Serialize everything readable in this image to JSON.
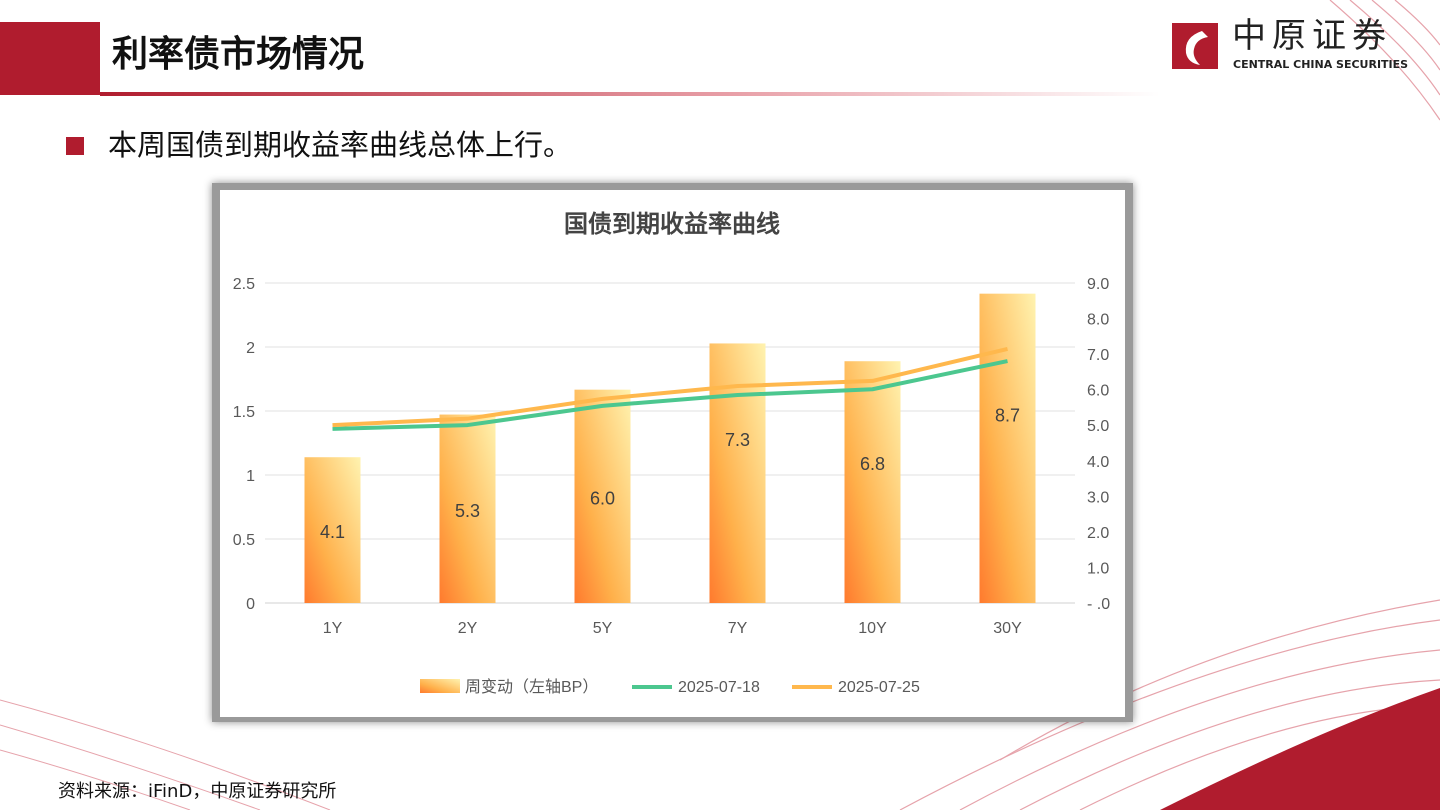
{
  "header": {
    "title": "利率债市场情况"
  },
  "logo": {
    "cn": "中原证券",
    "en": "CENTRAL CHINA SECURITIES"
  },
  "bullet": "本周国债到期收益率曲线总体上行。",
  "source": "资料来源：iFinD，中原证券研究所",
  "colors": {
    "brand": "#b01c2e",
    "green": "#4cc78f",
    "orange": "#ffb84d"
  },
  "chart_data": {
    "type": "bar+line",
    "title": "国债到期收益率曲线",
    "categories": [
      "1Y",
      "2Y",
      "5Y",
      "7Y",
      "10Y",
      "30Y"
    ],
    "left_axis": {
      "ylim": [
        0,
        2.5
      ],
      "ticks": [
        "0",
        "0.5",
        "1",
        "1.5",
        "2",
        "2.5"
      ]
    },
    "right_axis": {
      "ylim": [
        0,
        9
      ],
      "ticks": [
        "- .0",
        "1.0",
        "2.0",
        "3.0",
        "4.0",
        "5.0",
        "6.0",
        "7.0",
        "8.0",
        "9.0"
      ]
    },
    "bars": {
      "name": "周变动（左轴BP）",
      "axis": "right",
      "values": [
        4.1,
        5.3,
        6.0,
        7.3,
        6.8,
        8.7
      ],
      "labels": [
        "4.1",
        "5.3",
        "6.0",
        "7.3",
        "6.8",
        "8.7"
      ]
    },
    "series": [
      {
        "name": "2025-07-18",
        "axis": "left",
        "color": "#4cc78f",
        "values": [
          1.36,
          1.39,
          1.54,
          1.625,
          1.67,
          1.89
        ]
      },
      {
        "name": "2025-07-25",
        "axis": "left",
        "color": "#ffb84d",
        "values": [
          1.39,
          1.44,
          1.595,
          1.695,
          1.735,
          1.985
        ]
      }
    ],
    "grid": true,
    "legend": "bottom"
  }
}
